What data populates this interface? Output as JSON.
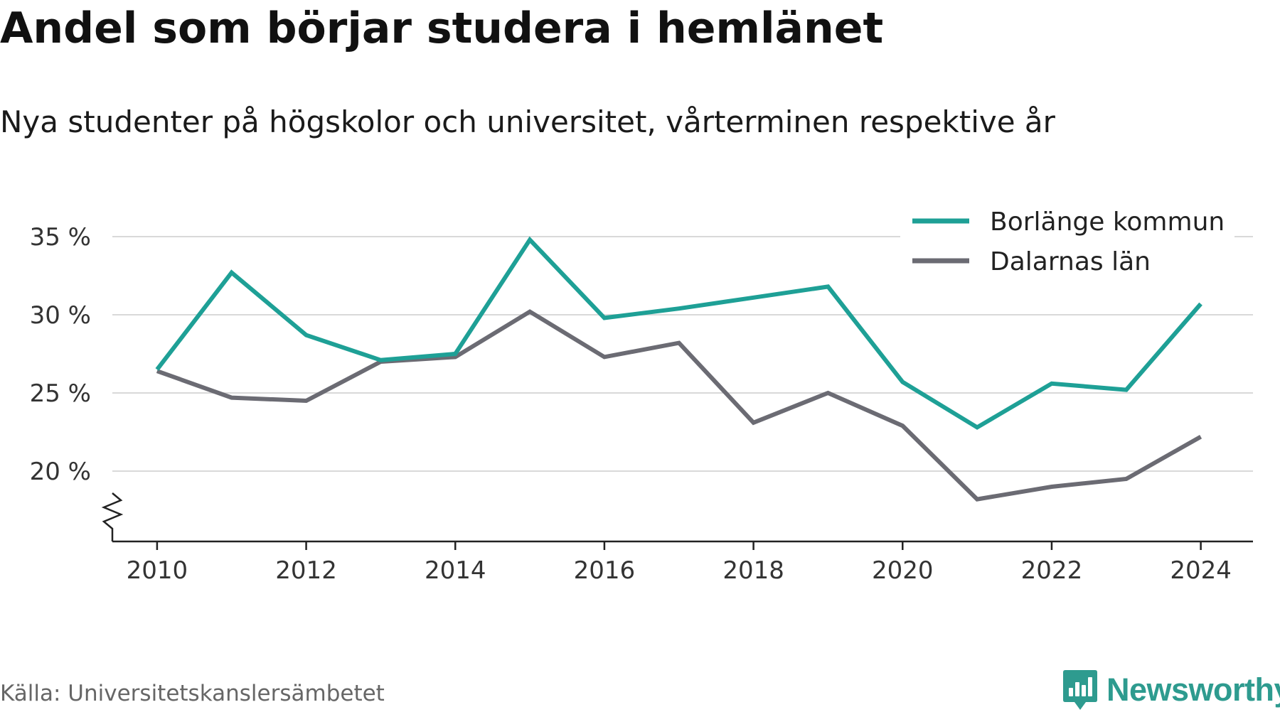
{
  "header": {
    "title": "Andel som börjar studera i hemlänet",
    "subtitle": "Nya studenter på högskolor och universitet, vårterminen respektive år"
  },
  "footer": {
    "source": "Källa: Universitetskanslersämbetet",
    "brand": "Newsworthy",
    "brand_icon": "bar-chart-badge-icon"
  },
  "colors": {
    "series_borlange": "#1ea096",
    "series_dalarna": "#6b6b73",
    "grid": "#d9d9d9",
    "axis": "#222222",
    "brand": "#2e9b8f"
  },
  "chart_data": {
    "type": "line",
    "x": [
      2010,
      2011,
      2012,
      2013,
      2014,
      2015,
      2016,
      2017,
      2018,
      2019,
      2020,
      2021,
      2022,
      2023,
      2024
    ],
    "series": [
      {
        "name": "Borlänge kommun",
        "values": [
          26.5,
          32.7,
          28.7,
          27.1,
          27.5,
          34.8,
          29.8,
          30.4,
          31.1,
          31.8,
          25.7,
          22.8,
          25.6,
          25.2,
          30.7
        ]
      },
      {
        "name": "Dalarnas län",
        "values": [
          26.4,
          24.7,
          24.5,
          27.0,
          27.3,
          30.2,
          27.3,
          28.2,
          23.1,
          25.0,
          22.9,
          18.2,
          19.0,
          19.5,
          22.2
        ]
      }
    ],
    "xticks": [
      2010,
      2012,
      2014,
      2016,
      2018,
      2020,
      2022,
      2024
    ],
    "xtick_labels": [
      "2010",
      "2012",
      "2014",
      "2016",
      "2018",
      "2020",
      "2022",
      "2024"
    ],
    "yticks": [
      20,
      25,
      30,
      35
    ],
    "ytick_labels": [
      "20 %",
      "25 %",
      "30 %",
      "35 %"
    ],
    "xlim": [
      2009.4,
      2024.7
    ],
    "ylim": [
      15.5,
      36.5
    ],
    "axis_break": true,
    "grid": true,
    "legend_position": "top-right"
  }
}
